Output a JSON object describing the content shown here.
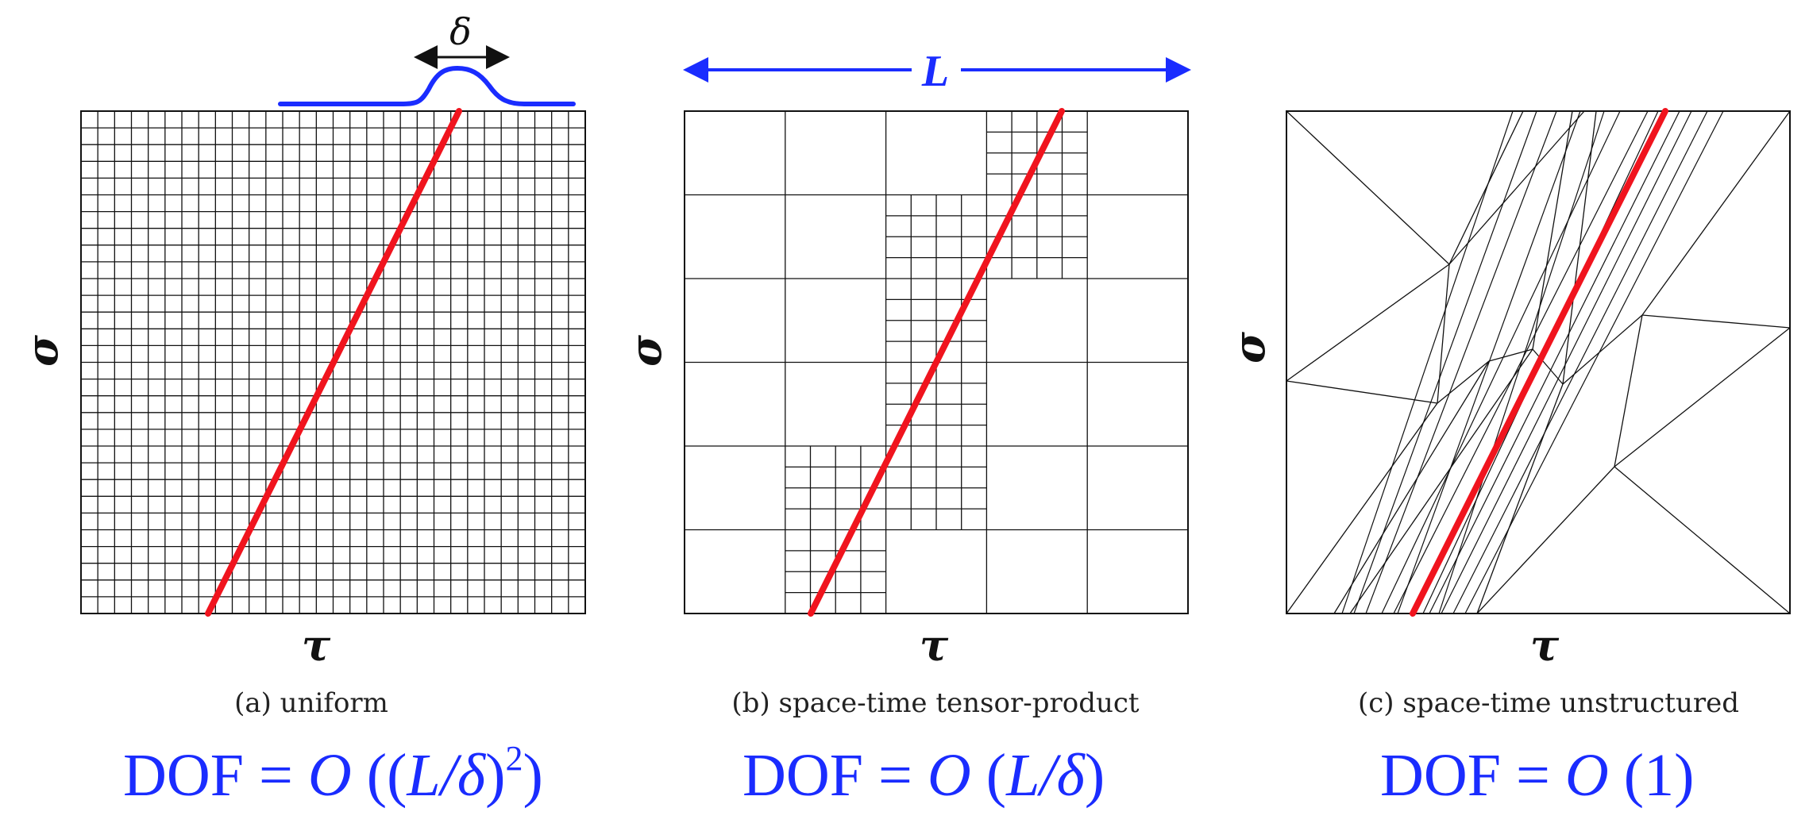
{
  "colors": {
    "accent": "#1a2cff",
    "front": "#f0141e",
    "mesh": "#111111"
  },
  "annotations": {
    "delta": "δ",
    "L": "L"
  },
  "panels": [
    {
      "id": "a",
      "caption": "(a)  uniform",
      "y_label": "σ",
      "x_label": "τ",
      "formula": {
        "prefix": "DOF = ",
        "big_o": "O",
        "open": " ((",
        "ratio": "L/δ",
        "close": ")",
        "exp": "2",
        "close2": ")"
      }
    },
    {
      "id": "b",
      "caption": "(b)  space-time tensor-product",
      "y_label": "σ",
      "x_label": "τ",
      "formula": {
        "prefix": "DOF = ",
        "big_o": "O",
        "open": " (",
        "ratio": "L/δ",
        "close": ")"
      }
    },
    {
      "id": "c",
      "caption": "(c)  space-time unstructured",
      "y_label": "σ",
      "x_label": "τ",
      "formula": {
        "prefix": "DOF = ",
        "big_o": "O",
        "arg": " (1)"
      }
    }
  ]
}
